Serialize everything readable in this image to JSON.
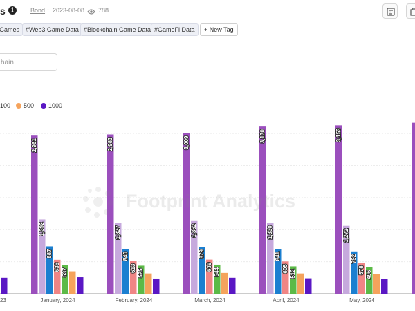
{
  "header": {
    "title_fragment": "s",
    "author": "Bond",
    "separator": "-",
    "date": "2023-08-08",
    "views": "788"
  },
  "icons": {
    "info": "info-icon",
    "views": "eye-icon",
    "toolbar": [
      "report-icon",
      "duplicate-icon"
    ],
    "new_tag": "plus-icon"
  },
  "tags": [
    "Games",
    "#Web3 Game Data",
    "#Blockchain Game Data",
    "#GameFi Data"
  ],
  "new_tag_label": "+ New Tag",
  "filter": {
    "value": "hain"
  },
  "watermark": "Footprint Analytics",
  "chart_data": {
    "type": "bar",
    "legend_placement": "top-left",
    "grid": true,
    "categories": [
      "",
      "January, 2024",
      "February, 2024",
      "March, 2024",
      "April, 2024",
      "May, 2024"
    ],
    "partial_first_tick": "23",
    "ylim": [
      0,
      3300
    ],
    "series": [
      {
        "name": "",
        "color": "#9b4fbd",
        "values": [
          null,
          2961,
          2983,
          3009,
          3130,
          3153
        ],
        "labels": [
          "",
          "2,961",
          "2,983",
          "3,009",
          "3,130",
          "3,153"
        ]
      },
      {
        "name": "",
        "color": "#c6a9dd",
        "values": [
          null,
          1392,
          1327,
          1362,
          1330,
          1272
        ],
        "labels": [
          "",
          "1,392",
          "1,327",
          "1,362",
          "1,330",
          "1,272"
        ]
      },
      {
        "name": "",
        "color": "#1b7fd0",
        "values": [
          null,
          887,
          840,
          879,
          841,
          792
        ],
        "labels": [
          "",
          "887",
          "840",
          "879",
          "841",
          "792"
        ]
      },
      {
        "name": "",
        "color": "#f08585",
        "values": [
          null,
          636,
          613,
          639,
          605,
          578
        ],
        "labels": [
          "",
          "636",
          "613",
          "639",
          "605",
          "578"
        ]
      },
      {
        "name": "100",
        "color": "#5cba47",
        "values": [
          null,
          537,
          525,
          544,
          512,
          496
        ],
        "labels": [
          "",
          "537",
          "525",
          "544",
          "512",
          "496"
        ]
      },
      {
        "name": "500",
        "color": "#f5a35c",
        "values": [
          370,
          420,
          380,
          390,
          380,
          370
        ],
        "labels": [
          "",
          "",
          "",
          "",
          "",
          ""
        ]
      },
      {
        "name": "1000",
        "color": "#5a17c4",
        "values": [
          300,
          310,
          285,
          300,
          290,
          280
        ],
        "labels": [
          "",
          "",
          "",
          "",
          "",
          ""
        ]
      }
    ],
    "legend": [
      {
        "label": "100",
        "color": "#5cba47"
      },
      {
        "label": "500",
        "color": "#f5a35c"
      },
      {
        "label": "1000",
        "color": "#5a17c4"
      }
    ]
  }
}
